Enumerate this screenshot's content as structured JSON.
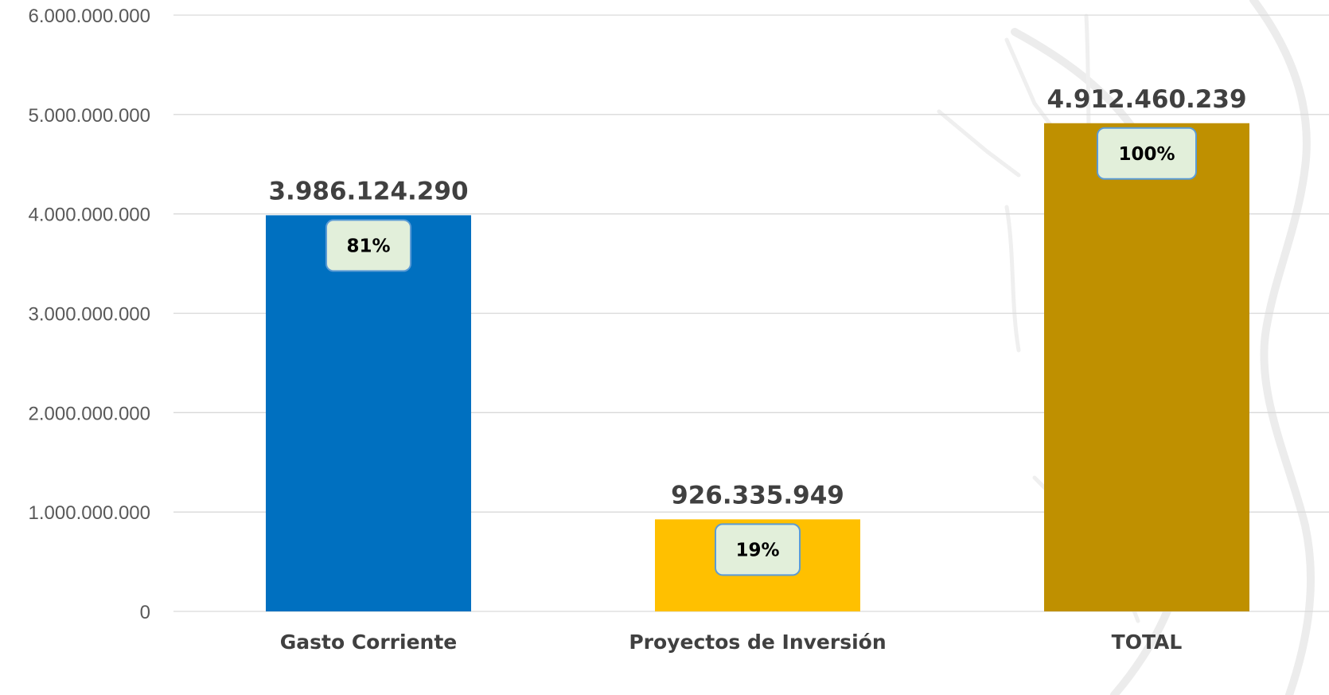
{
  "chart_data": {
    "type": "bar",
    "categories": [
      "Gasto Corriente",
      "Proyectos de Inversión",
      "TOTAL"
    ],
    "values": [
      3986124290,
      926335949,
      4912460239
    ],
    "value_labels": [
      "3.986.124.290",
      "926.335.949",
      "4.912.460.239"
    ],
    "percent_labels": [
      "81%",
      "19%",
      "100%"
    ],
    "bar_colors": [
      "#0070c0",
      "#ffc000",
      "#bf9000"
    ],
    "ylim": [
      0,
      6000000000
    ],
    "yticks": [
      0,
      1000000000,
      2000000000,
      3000000000,
      4000000000,
      5000000000,
      6000000000
    ],
    "ytick_labels": [
      "0",
      "1.000.000.000",
      "2.000.000.000",
      "3.000.000.000",
      "4.000.000.000",
      "5.000.000.000",
      "6.000.000.000"
    ],
    "grid": true,
    "legend": "none",
    "title": "",
    "xlabel": "",
    "ylabel": ""
  },
  "colors": {
    "grid": "#d9d9d9",
    "percent_box_fill": "#e2efda",
    "percent_box_border": "#5b9bd5",
    "label_text": "#404040",
    "tick_text": "#595959"
  }
}
